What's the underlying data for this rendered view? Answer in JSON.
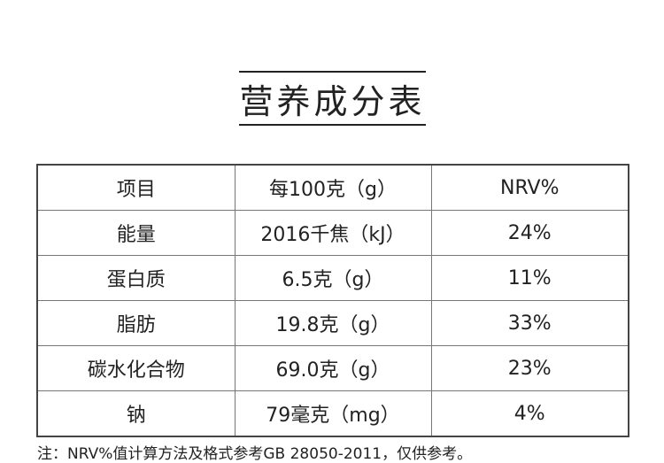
{
  "header": {
    "title": "营养成分表"
  },
  "table": {
    "columns": [
      "项目",
      "每100克（g）",
      "NRV%"
    ],
    "rows": [
      [
        "能量",
        "2016千焦（kJ）",
        "24%"
      ],
      [
        "蛋白质",
        "6.5克（g）",
        "11%"
      ],
      [
        "脂肪",
        "19.8克（g）",
        "33%"
      ],
      [
        "碳水化合物",
        "69.0克（g）",
        "23%"
      ],
      [
        "钠",
        "79毫克（mg）",
        "4%"
      ]
    ]
  },
  "footer": {
    "note": "注：NRV%值计算方法及格式参考GB 28050-2011，仅供参考。"
  }
}
